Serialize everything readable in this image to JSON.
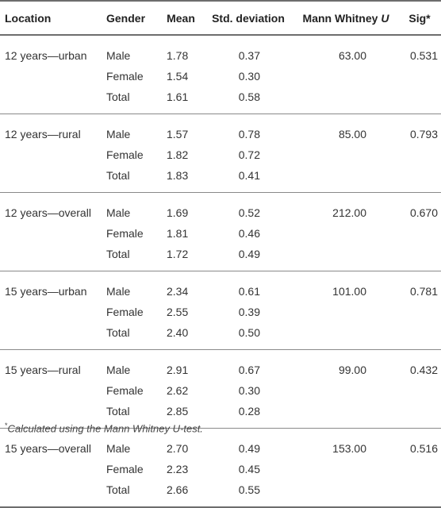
{
  "table": {
    "headers": {
      "location": "Location",
      "gender": "Gender",
      "mean": "Mean",
      "sd": "Std. deviation",
      "mw_prefix": "Mann Whitney ",
      "mw_u": "U",
      "sig": "Sig*"
    },
    "groups": [
      {
        "location": "12 years—urban",
        "mann_whitney_u": "63.00",
        "sig": "0.531",
        "rows": [
          {
            "gender": "Male",
            "mean": "1.78",
            "sd": "0.37"
          },
          {
            "gender": "Female",
            "mean": "1.54",
            "sd": "0.30"
          },
          {
            "gender": "Total",
            "mean": "1.61",
            "sd": "0.58"
          }
        ]
      },
      {
        "location": "12 years—rural",
        "mann_whitney_u": "85.00",
        "sig": "0.793",
        "rows": [
          {
            "gender": "Male",
            "mean": "1.57",
            "sd": "0.78"
          },
          {
            "gender": "Female",
            "mean": "1.82",
            "sd": "0.72"
          },
          {
            "gender": "Total",
            "mean": "1.83",
            "sd": "0.41"
          }
        ]
      },
      {
        "location": "12 years—overall",
        "mann_whitney_u": "212.00",
        "sig": "0.670",
        "rows": [
          {
            "gender": "Male",
            "mean": "1.69",
            "sd": "0.52"
          },
          {
            "gender": "Female",
            "mean": "1.81",
            "sd": "0.46"
          },
          {
            "gender": "Total",
            "mean": "1.72",
            "sd": "0.49"
          }
        ]
      },
      {
        "location": "15 years—urban",
        "mann_whitney_u": "101.00",
        "sig": "0.781",
        "rows": [
          {
            "gender": "Male",
            "mean": "2.34",
            "sd": "0.61"
          },
          {
            "gender": "Female",
            "mean": "2.55",
            "sd": "0.39"
          },
          {
            "gender": "Total",
            "mean": "2.40",
            "sd": "0.50"
          }
        ]
      },
      {
        "location": "15 years—rural",
        "mann_whitney_u": "99.00",
        "sig": "0.432",
        "rows": [
          {
            "gender": "Male",
            "mean": "2.91",
            "sd": "0.67"
          },
          {
            "gender": "Female",
            "mean": "2.62",
            "sd": "0.30"
          },
          {
            "gender": "Total",
            "mean": "2.85",
            "sd": "0.28"
          }
        ]
      },
      {
        "location": "15 years—overall",
        "mann_whitney_u": "153.00",
        "sig": "0.516",
        "rows": [
          {
            "gender": "Male",
            "mean": "2.70",
            "sd": "0.49"
          },
          {
            "gender": "Female",
            "mean": "2.23",
            "sd": "0.45"
          },
          {
            "gender": "Total",
            "mean": "2.66",
            "sd": "0.55"
          }
        ]
      }
    ]
  },
  "footnote": {
    "marker": "*",
    "text": "Calculated using the Mann Whitney U-test."
  }
}
